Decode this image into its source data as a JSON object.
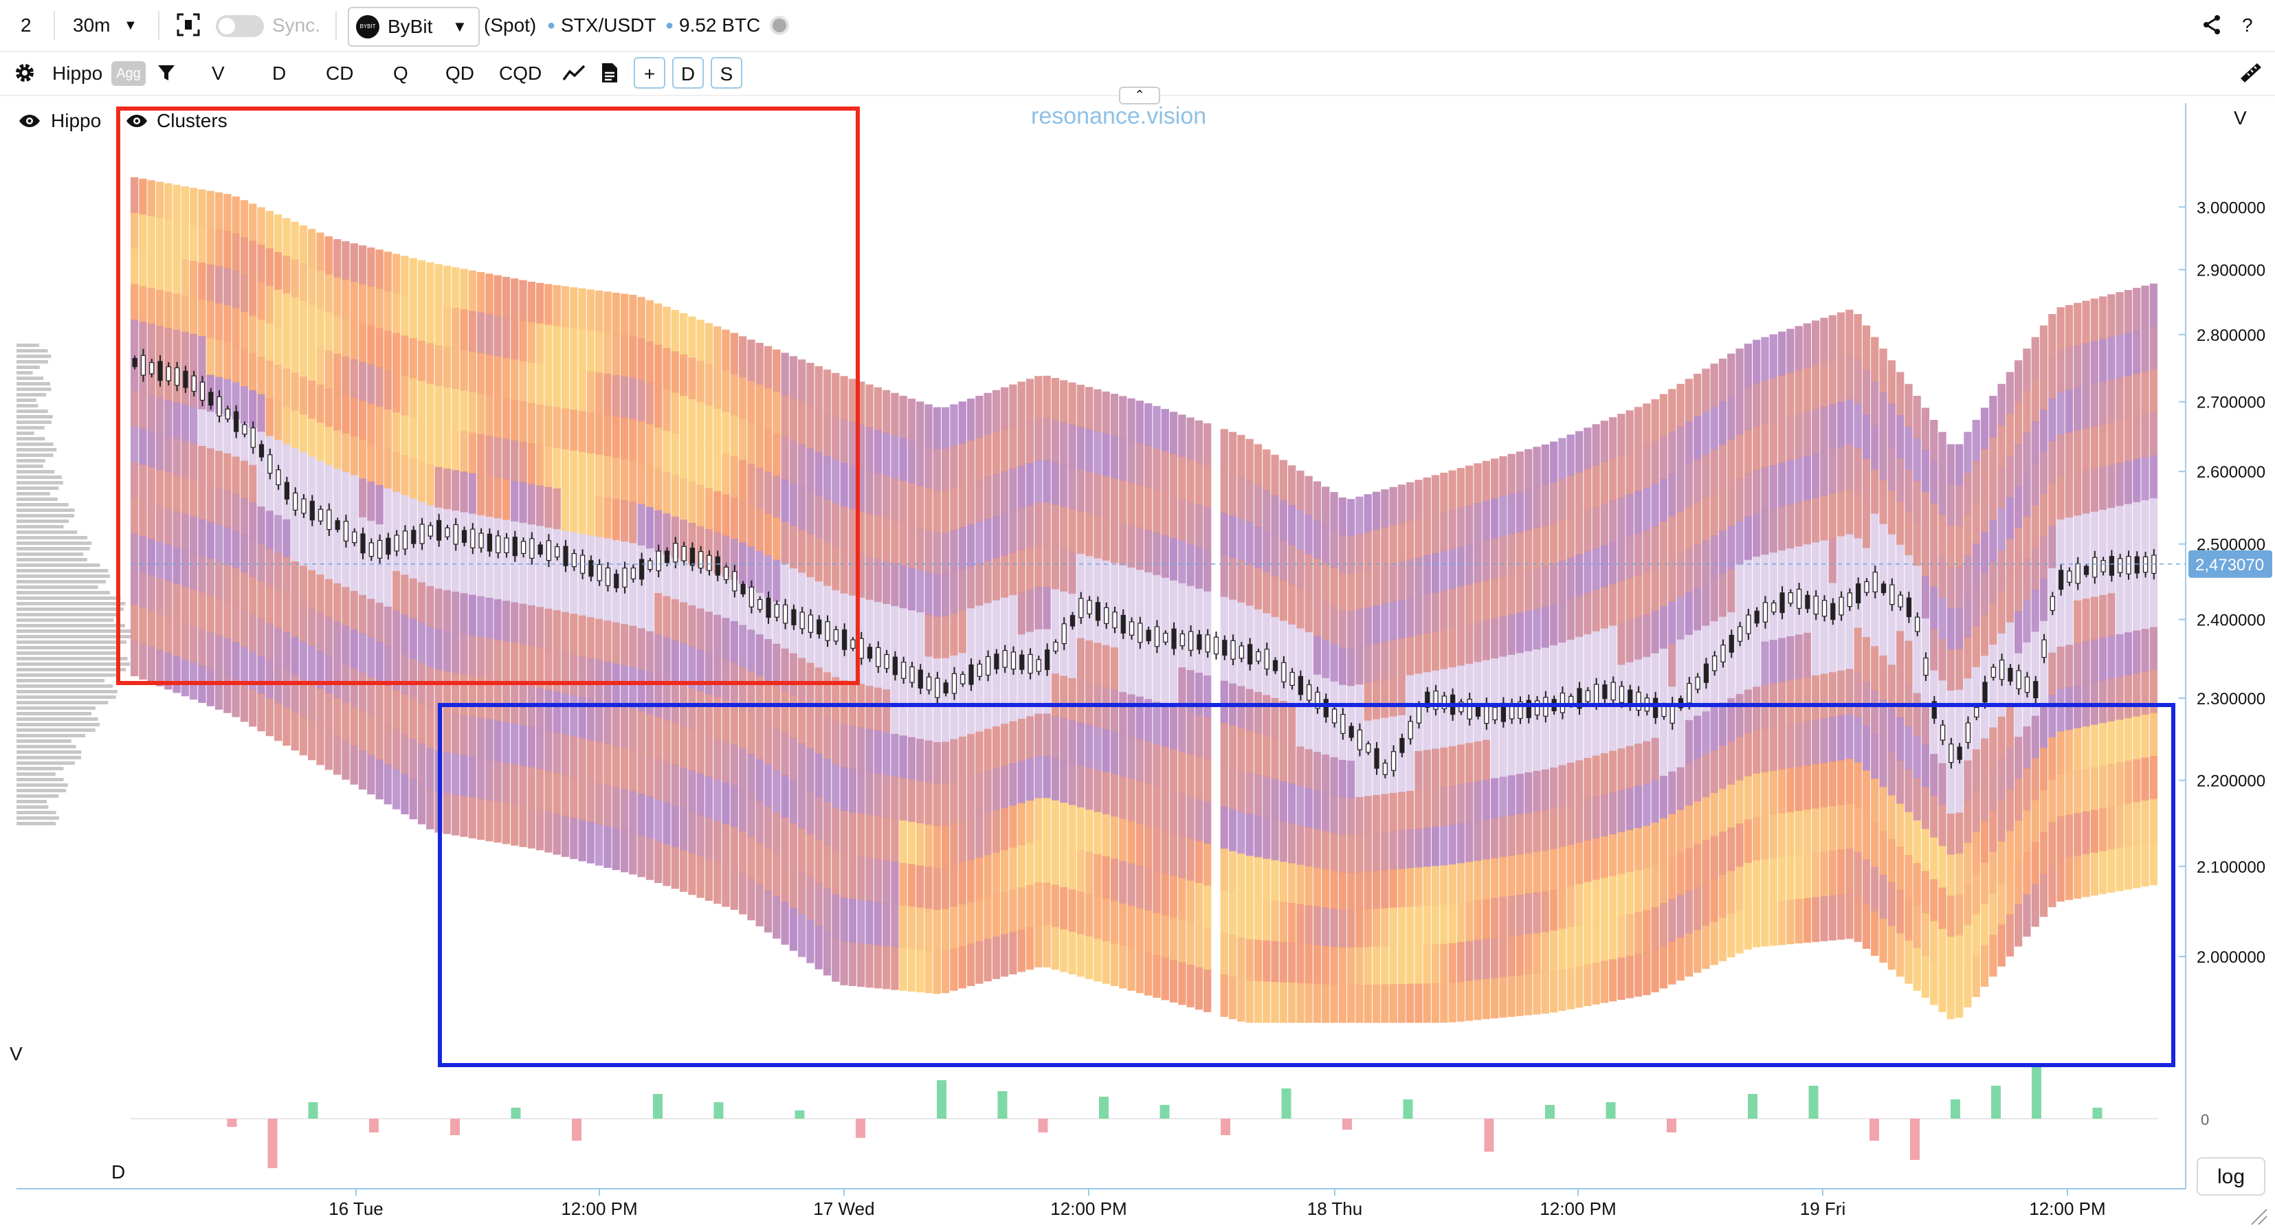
{
  "topbar": {
    "layout_count": "2",
    "interval": "30m",
    "sync_label": "Sync.",
    "exchange": "ByBit",
    "exchange_logo_text": "BYBIT",
    "market_type": "(Spot)",
    "pair": "STX/USDT",
    "volume": "9.52 BTC",
    "help": "?"
  },
  "toolbar": {
    "indicator_set": "Hippo",
    "agg_badge": "Agg",
    "buttons": [
      "V",
      "D",
      "CD",
      "Q",
      "QD",
      "CQD"
    ],
    "plus_button": "+",
    "d_button": "D",
    "s_button": "S"
  },
  "legend": {
    "hippo": "Hippo",
    "clusters": "Clusters"
  },
  "watermark": "resonance.vision",
  "axis": {
    "price_axis_label": "V",
    "volume_pane_label": "V",
    "delta_pane_label": "D",
    "delta_zero_label": "0",
    "log_button": "log"
  },
  "chart_data": {
    "type": "candlestick-cluster",
    "pair": "STX/USDT",
    "exchange": "ByBit",
    "interval": "30m",
    "last_price": 2.47307,
    "last_price_label": "2,473070",
    "y_scale": "log",
    "ylim": [
      1.9,
      3.15
    ],
    "price_ticks": [
      {
        "value": 3.0,
        "label": "3.000000"
      },
      {
        "value": 2.9,
        "label": "2.900000"
      },
      {
        "value": 2.8,
        "label": "2.800000"
      },
      {
        "value": 2.7,
        "label": "2.700000"
      },
      {
        "value": 2.6,
        "label": "2.600000"
      },
      {
        "value": 2.5,
        "label": "2.500000"
      },
      {
        "value": 2.4,
        "label": "2.400000"
      },
      {
        "value": 2.3,
        "label": "2.300000"
      },
      {
        "value": 2.2,
        "label": "2.200000"
      },
      {
        "value": 2.1,
        "label": "2.100000"
      },
      {
        "value": 2.0,
        "label": "2.000000"
      }
    ],
    "time_ticks": [
      "16 Tue",
      "12:00 PM",
      "17 Wed",
      "12:00 PM",
      "18 Thu",
      "12:00 PM",
      "19 Fri",
      "12:00 PM"
    ],
    "price_path": [
      {
        "t": 0.0,
        "p": 2.76
      },
      {
        "t": 0.03,
        "p": 2.73
      },
      {
        "t": 0.06,
        "p": 2.65
      },
      {
        "t": 0.08,
        "p": 2.56
      },
      {
        "t": 0.1,
        "p": 2.53
      },
      {
        "t": 0.12,
        "p": 2.49
      },
      {
        "t": 0.15,
        "p": 2.52
      },
      {
        "t": 0.18,
        "p": 2.5
      },
      {
        "t": 0.21,
        "p": 2.49
      },
      {
        "t": 0.24,
        "p": 2.45
      },
      {
        "t": 0.27,
        "p": 2.49
      },
      {
        "t": 0.29,
        "p": 2.47
      },
      {
        "t": 0.31,
        "p": 2.42
      },
      {
        "t": 0.34,
        "p": 2.39
      },
      {
        "t": 0.37,
        "p": 2.35
      },
      {
        "t": 0.4,
        "p": 2.31
      },
      {
        "t": 0.43,
        "p": 2.35
      },
      {
        "t": 0.45,
        "p": 2.34
      },
      {
        "t": 0.47,
        "p": 2.42
      },
      {
        "t": 0.5,
        "p": 2.38
      },
      {
        "t": 0.53,
        "p": 2.37
      },
      {
        "t": 0.56,
        "p": 2.35
      },
      {
        "t": 0.58,
        "p": 2.31
      },
      {
        "t": 0.61,
        "p": 2.24
      },
      {
        "t": 0.62,
        "p": 2.21
      },
      {
        "t": 0.64,
        "p": 2.3
      },
      {
        "t": 0.67,
        "p": 2.28
      },
      {
        "t": 0.7,
        "p": 2.29
      },
      {
        "t": 0.73,
        "p": 2.31
      },
      {
        "t": 0.76,
        "p": 2.28
      },
      {
        "t": 0.78,
        "p": 2.34
      },
      {
        "t": 0.8,
        "p": 2.4
      },
      {
        "t": 0.82,
        "p": 2.43
      },
      {
        "t": 0.84,
        "p": 2.41
      },
      {
        "t": 0.86,
        "p": 2.45
      },
      {
        "t": 0.88,
        "p": 2.41
      },
      {
        "t": 0.89,
        "p": 2.28
      },
      {
        "t": 0.9,
        "p": 2.22
      },
      {
        "t": 0.92,
        "p": 2.34
      },
      {
        "t": 0.94,
        "p": 2.31
      },
      {
        "t": 0.95,
        "p": 2.45
      },
      {
        "t": 0.97,
        "p": 2.47
      },
      {
        "t": 1.0,
        "p": 2.473
      }
    ],
    "cluster_band": [
      {
        "t": 0.0,
        "top": 3.05,
        "bottom": 2.33
      },
      {
        "t": 0.05,
        "top": 3.02,
        "bottom": 2.28
      },
      {
        "t": 0.1,
        "top": 2.95,
        "bottom": 2.21
      },
      {
        "t": 0.15,
        "top": 2.91,
        "bottom": 2.14
      },
      {
        "t": 0.2,
        "top": 2.88,
        "bottom": 2.12
      },
      {
        "t": 0.25,
        "top": 2.86,
        "bottom": 2.09
      },
      {
        "t": 0.3,
        "top": 2.8,
        "bottom": 2.05
      },
      {
        "t": 0.35,
        "top": 2.74,
        "bottom": 1.97
      },
      {
        "t": 0.4,
        "top": 2.69,
        "bottom": 1.96
      },
      {
        "t": 0.45,
        "top": 2.74,
        "bottom": 1.99
      },
      {
        "t": 0.5,
        "top": 2.7,
        "bottom": 1.96
      },
      {
        "t": 0.55,
        "top": 2.65,
        "bottom": 1.93
      },
      {
        "t": 0.6,
        "top": 2.56,
        "bottom": 1.93
      },
      {
        "t": 0.65,
        "top": 2.6,
        "bottom": 1.93
      },
      {
        "t": 0.7,
        "top": 2.64,
        "bottom": 1.94
      },
      {
        "t": 0.75,
        "top": 2.7,
        "bottom": 1.96
      },
      {
        "t": 0.8,
        "top": 2.79,
        "bottom": 2.01
      },
      {
        "t": 0.85,
        "top": 2.84,
        "bottom": 2.02
      },
      {
        "t": 0.9,
        "top": 2.63,
        "bottom": 1.93
      },
      {
        "t": 0.95,
        "top": 2.84,
        "bottom": 2.06
      },
      {
        "t": 1.0,
        "top": 2.88,
        "bottom": 2.08
      }
    ],
    "delta_bars": [
      {
        "t": 0.05,
        "v": -3
      },
      {
        "t": 0.07,
        "v": -18
      },
      {
        "t": 0.09,
        "v": 6
      },
      {
        "t": 0.12,
        "v": -5
      },
      {
        "t": 0.16,
        "v": -6
      },
      {
        "t": 0.19,
        "v": 4
      },
      {
        "t": 0.22,
        "v": -8
      },
      {
        "t": 0.26,
        "v": 9
      },
      {
        "t": 0.29,
        "v": 6
      },
      {
        "t": 0.33,
        "v": 3
      },
      {
        "t": 0.36,
        "v": -7
      },
      {
        "t": 0.4,
        "v": 14
      },
      {
        "t": 0.43,
        "v": 10
      },
      {
        "t": 0.45,
        "v": -5
      },
      {
        "t": 0.48,
        "v": 8
      },
      {
        "t": 0.51,
        "v": 5
      },
      {
        "t": 0.54,
        "v": -6
      },
      {
        "t": 0.57,
        "v": 11
      },
      {
        "t": 0.6,
        "v": -4
      },
      {
        "t": 0.63,
        "v": 7
      },
      {
        "t": 0.67,
        "v": -12
      },
      {
        "t": 0.7,
        "v": 5
      },
      {
        "t": 0.73,
        "v": 6
      },
      {
        "t": 0.76,
        "v": -5
      },
      {
        "t": 0.8,
        "v": 9
      },
      {
        "t": 0.83,
        "v": 12
      },
      {
        "t": 0.86,
        "v": -8
      },
      {
        "t": 0.88,
        "v": -15
      },
      {
        "t": 0.9,
        "v": 7
      },
      {
        "t": 0.92,
        "v": 12
      },
      {
        "t": 0.94,
        "v": 20
      },
      {
        "t": 0.97,
        "v": 4
      }
    ]
  },
  "annotations": [
    {
      "color": "#ee2a1c",
      "label": ""
    },
    {
      "color": "#1626e0",
      "label": ""
    }
  ],
  "colors": {
    "accent_blue": "#6fa8dc",
    "buy": "#7fd9a6",
    "sell": "#f2a4ad",
    "cluster_low": "#e6dcf0",
    "cluster_mid": "#b486c4",
    "cluster_high": "#f6996f",
    "cluster_peak": "#fccf7c"
  }
}
